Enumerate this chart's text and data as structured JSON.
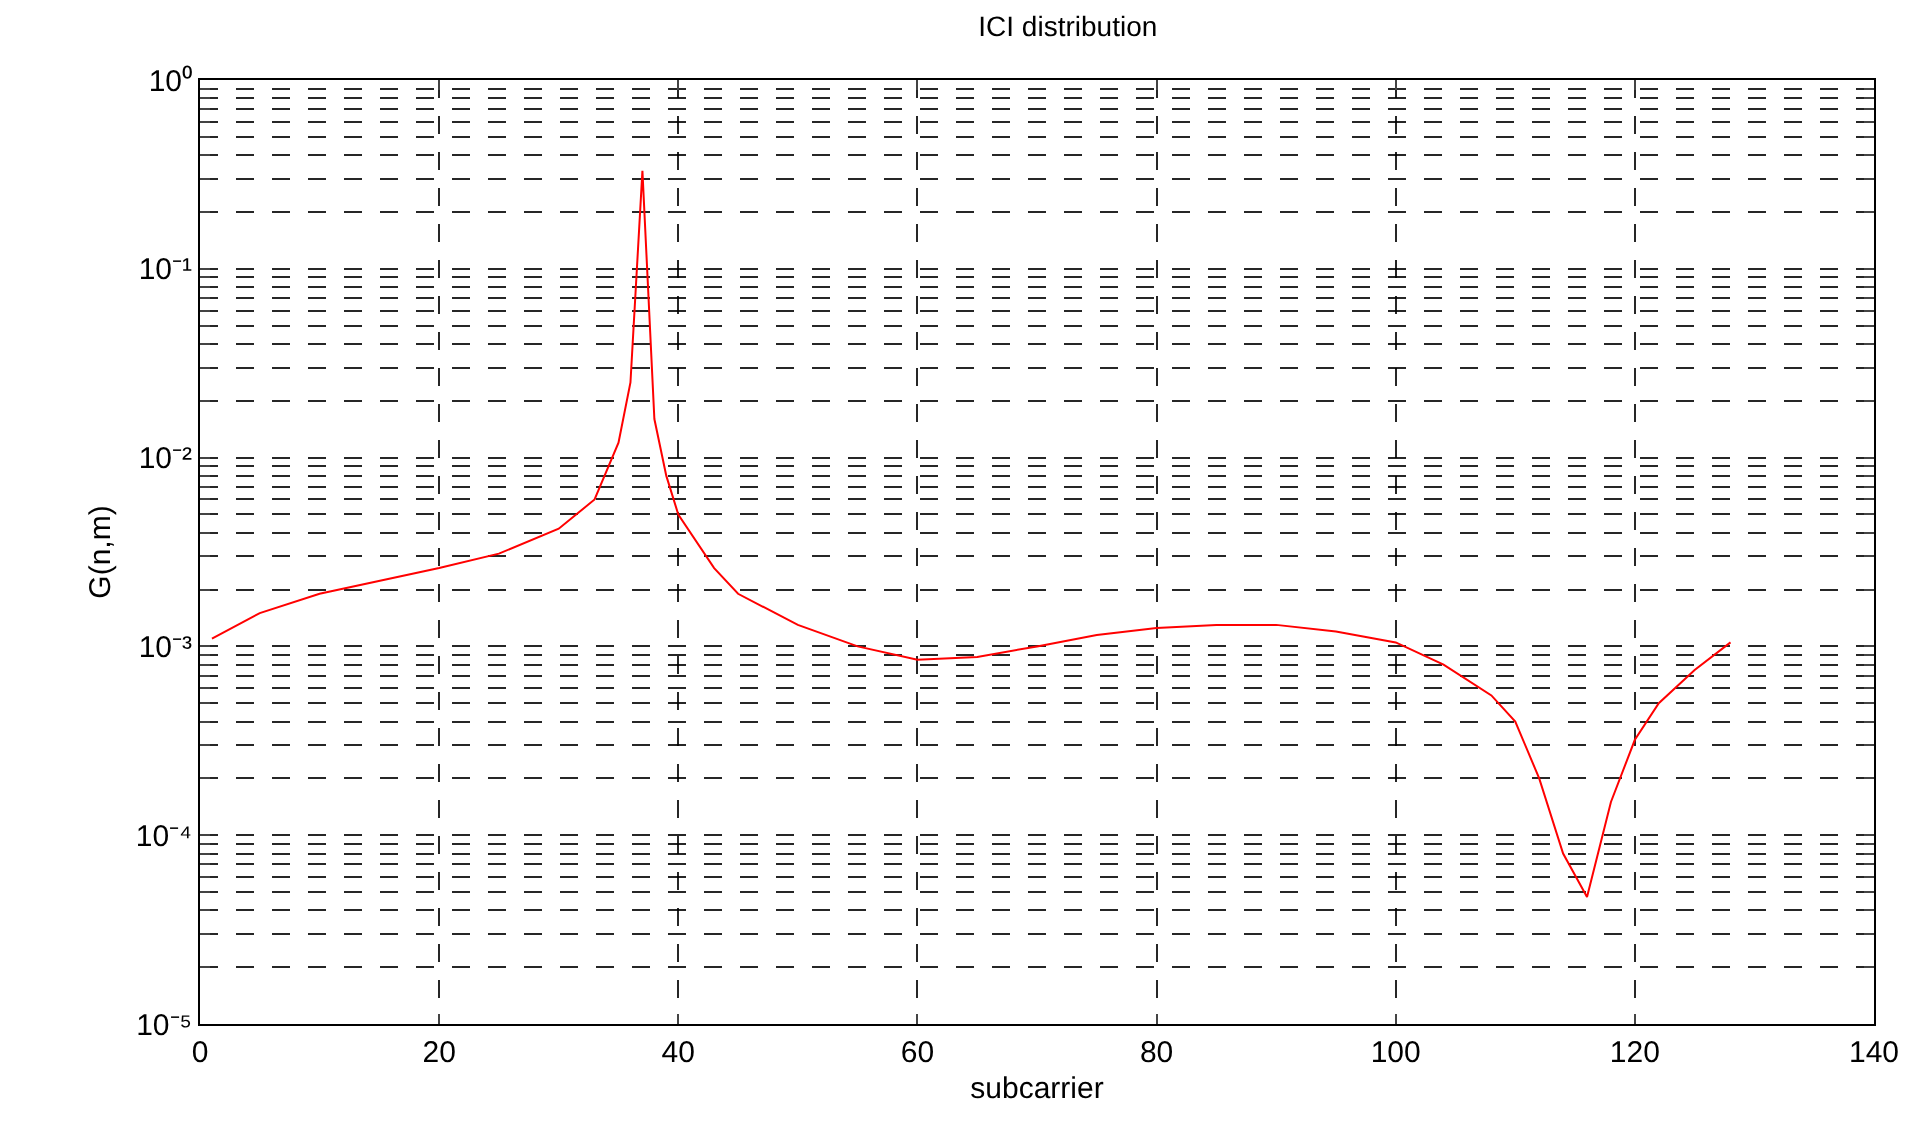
{
  "chart_data": {
    "type": "line",
    "title": "ICI distribution",
    "xlabel": "subcarrier",
    "ylabel": "G(n,m)",
    "x": [
      1,
      5,
      10,
      20,
      25,
      30,
      33,
      35,
      36,
      37,
      38,
      39,
      40,
      43,
      45,
      50,
      55,
      60,
      65,
      70,
      75,
      80,
      85,
      90,
      95,
      100,
      104,
      108,
      110,
      112,
      114,
      116,
      118,
      120,
      122,
      125,
      128
    ],
    "series": [
      {
        "color": "#ff0000",
        "values": [
          0.0011,
          0.0015,
          0.0019,
          0.0026,
          0.0031,
          0.0042,
          0.006,
          0.012,
          0.025,
          0.33,
          0.016,
          0.008,
          0.005,
          0.0026,
          0.0019,
          0.0013,
          0.001,
          0.00085,
          0.00088,
          0.001,
          0.00115,
          0.00125,
          0.0013,
          0.0013,
          0.0012,
          0.00105,
          0.0008,
          0.00055,
          0.0004,
          0.0002,
          8e-05,
          4.7e-05,
          0.00015,
          0.00032,
          0.0005,
          0.00075,
          0.00105
        ]
      }
    ],
    "xlim": [
      0,
      140
    ],
    "xticks": [
      0,
      20,
      40,
      60,
      80,
      100,
      120,
      140
    ],
    "ylim": [
      1e-05,
      1
    ],
    "log": "y",
    "grid": true,
    "marker": "none",
    "yticks": [
      {
        "value": 1e-05,
        "label": "10⁻⁵"
      },
      {
        "value": 2e-05,
        "label": null
      },
      {
        "value": 3e-05,
        "label": null
      },
      {
        "value": 4e-05,
        "label": null
      },
      {
        "value": 5e-05,
        "label": null
      },
      {
        "value": 6e-05,
        "label": null
      },
      {
        "value": 7e-05,
        "label": null
      },
      {
        "value": 8e-05,
        "label": null
      },
      {
        "value": 9e-05,
        "label": null
      },
      {
        "value": 0.0001,
        "label": "10⁻⁴"
      },
      {
        "value": 0.0002,
        "label": null
      },
      {
        "value": 0.0003,
        "label": null
      },
      {
        "value": 0.0004,
        "label": null
      },
      {
        "value": 0.0005,
        "label": null
      },
      {
        "value": 0.0006,
        "label": null
      },
      {
        "value": 0.0007,
        "label": null
      },
      {
        "value": 0.0008,
        "label": null
      },
      {
        "value": 0.0009,
        "label": null
      },
      {
        "value": 0.001,
        "label": "10⁻³"
      },
      {
        "value": 0.002,
        "label": null
      },
      {
        "value": 0.003,
        "label": null
      },
      {
        "value": 0.004,
        "label": null
      },
      {
        "value": 0.005,
        "label": null
      },
      {
        "value": 0.006,
        "label": null
      },
      {
        "value": 0.007,
        "label": null
      },
      {
        "value": 0.008,
        "label": null
      },
      {
        "value": 0.009,
        "label": null
      },
      {
        "value": 0.01,
        "label": "10⁻²"
      },
      {
        "value": 0.02,
        "label": null
      },
      {
        "value": 0.03,
        "label": null
      },
      {
        "value": 0.04,
        "label": null
      },
      {
        "value": 0.05,
        "label": null
      },
      {
        "value": 0.06,
        "label": null
      },
      {
        "value": 0.07,
        "label": null
      },
      {
        "value": 0.08,
        "label": null
      },
      {
        "value": 0.09,
        "label": null
      },
      {
        "value": 0.1,
        "label": "10⁻¹"
      },
      {
        "value": 0.2,
        "label": null
      },
      {
        "value": 0.3,
        "label": null
      },
      {
        "value": 0.4,
        "label": null
      },
      {
        "value": 0.5,
        "label": null
      },
      {
        "value": 0.6,
        "label": null
      },
      {
        "value": 0.7,
        "label": null
      },
      {
        "value": 0.8,
        "label": null
      },
      {
        "value": 0.9,
        "label": null
      },
      {
        "value": 1,
        "label": "10⁰"
      }
    ]
  }
}
